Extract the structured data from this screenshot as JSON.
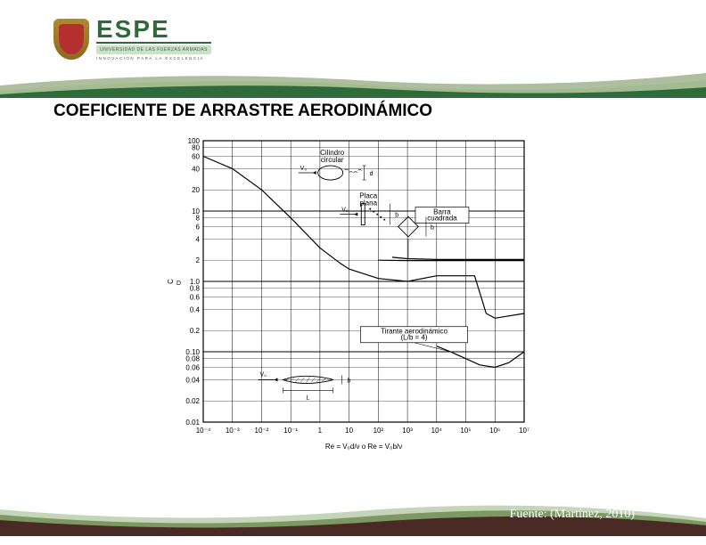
{
  "brand": {
    "name": "ESPE",
    "subtitle": "UNIVERSIDAD DE LAS FUERZAS ARMADAS",
    "tagline": "INNOVACIÓN  PARA  LA  EXCELENCIA"
  },
  "title": "COEFICIENTE DE ARRASTRE AERODINÁMICO",
  "caption": "Fuente: (Martínez, 2010)",
  "colors": {
    "brand_green": "#2f6a3a",
    "brand_dark": "#4a2a24",
    "swoosh_light": "#9eb98a",
    "swoosh_mid": "#6a8a4e",
    "axis": "#000000",
    "curve": "#000000",
    "background": "#ffffff"
  },
  "chart": {
    "type": "line-loglog",
    "x": {
      "label": "Re = V₀d/ν  o  Re = V₀b/ν",
      "log": true,
      "xlim": [
        0.0001,
        10000000.0
      ],
      "ticks": [
        0.0001,
        0.001,
        0.01,
        0.1,
        1,
        10.0,
        100.0,
        1000.0,
        10000.0,
        100000.0,
        1000000.0,
        10000000.0
      ],
      "tick_labels": [
        "10⁻⁴",
        "10⁻³",
        "10⁻²",
        "10⁻¹",
        "1",
        "10",
        "10²",
        "10³",
        "10⁴",
        "10⁵",
        "10⁶",
        "10⁷"
      ]
    },
    "y": {
      "label": "C_D",
      "log": true,
      "ylim": [
        0.01,
        100
      ],
      "major": [
        0.01,
        0.1,
        1,
        10,
        100
      ],
      "labeled_ticks": [
        0.01,
        0.02,
        0.04,
        0.06,
        0.08,
        0.1,
        0.2,
        0.4,
        0.6,
        0.8,
        1.0,
        2,
        4,
        6,
        8,
        10,
        20,
        40,
        60,
        80,
        100
      ],
      "tick_labels": [
        "0.01",
        "0.02",
        "0.04",
        "0.06",
        "0.08",
        "0.10",
        "0.2",
        "0.4",
        "0.6",
        "0.8",
        "1.0",
        "2",
        "4",
        "6",
        "8",
        "10",
        "20",
        "40",
        "60",
        "80",
        "100"
      ]
    },
    "curves": {
      "cilindro_circular": {
        "label": "Cilindro circular",
        "color": "#000000",
        "points_re": [
          0.0001,
          0.001,
          0.01,
          0.1,
          1,
          5,
          10,
          100.0,
          1000.0,
          10000.0,
          100000.0,
          200000.0,
          500000.0,
          1000000.0,
          10000000.0
        ],
        "points_cd": [
          60,
          40,
          20,
          8,
          3,
          1.8,
          1.5,
          1.1,
          1.0,
          1.2,
          1.2,
          1.2,
          0.35,
          0.3,
          0.35
        ]
      },
      "placa_plana": {
        "label": "Placa plana",
        "color": "#000000",
        "points_re": [
          100.0,
          1000.0,
          10000.0,
          100000.0,
          1000000.0,
          10000000.0
        ],
        "points_cd": [
          2.0,
          1.98,
          1.98,
          1.98,
          1.98,
          1.98
        ]
      },
      "barra_cuadrada": {
        "label": "Barra cuadrada",
        "color": "#000000",
        "points_re": [
          300.0,
          1000.0,
          10000.0,
          100000.0,
          1000000.0,
          10000000.0
        ],
        "points_cd": [
          2.2,
          2.1,
          2.05,
          2.05,
          2.05,
          2.05
        ]
      },
      "tirante_aerodinamico": {
        "label": "Tirante aerodinámico (L/b = 4)",
        "color": "#000000",
        "points_re": [
          10000.0,
          30000.0,
          100000.0,
          300000.0,
          1000000.0,
          3000000.0,
          10000000.0
        ],
        "points_cd": [
          0.12,
          0.1,
          0.08,
          0.065,
          0.06,
          0.07,
          0.1
        ]
      }
    },
    "annotations": {
      "cilindro": {
        "shape": "ellipse",
        "label": "Cilindro circular",
        "symbol": "d",
        "v": "V₀"
      },
      "placa": {
        "shape": "rect-vertical",
        "label": "Placa plana",
        "symbol": "b",
        "v": "V₀"
      },
      "barra": {
        "shape": "square-rot",
        "label": "Barra cuadrada",
        "symbol": "b"
      },
      "tirante": {
        "shape": "airfoil",
        "label": "Tirante aerodinámico",
        "note": "(L/b = 4)",
        "L": "L",
        "b": "b",
        "v": "V₀"
      }
    },
    "line_width": 1.2,
    "grid_color": "#000000",
    "grid_width": 0.5
  }
}
